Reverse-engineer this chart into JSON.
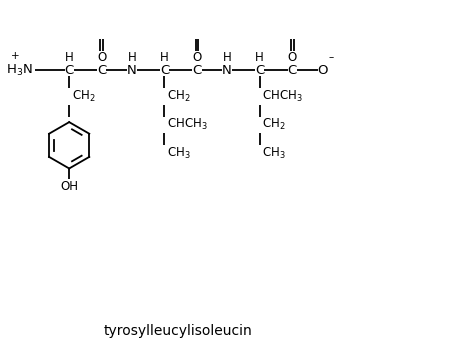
{
  "title": "tyrosylleucylisoleucin",
  "bg_color": "#ffffff",
  "text_color": "#000000",
  "fig_width": 4.74,
  "fig_height": 3.49,
  "dpi": 100,
  "lw": 1.3,
  "fs_main": 9.5,
  "fs_label": 8.5,
  "fs_super": 7.5,
  "y_main": 6.0,
  "xlim": [
    0,
    10
  ],
  "ylim": [
    0,
    7.5
  ]
}
